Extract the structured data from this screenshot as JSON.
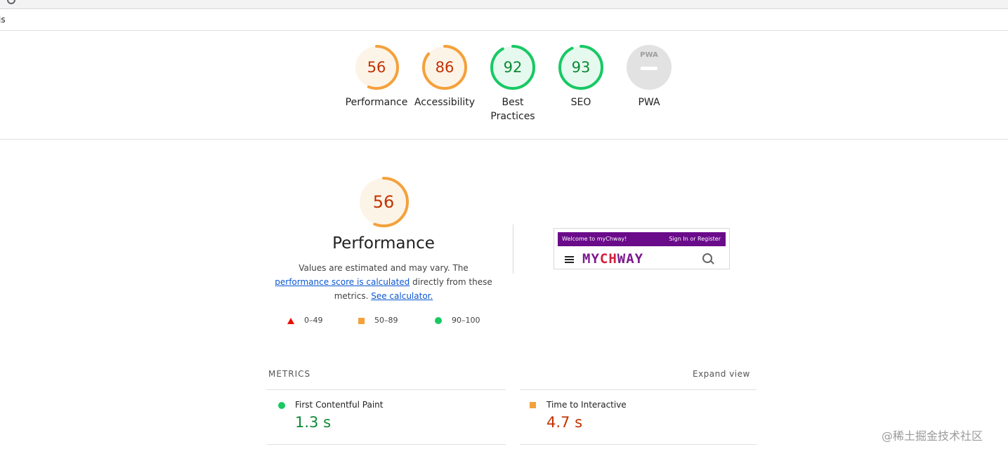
{
  "browser": {
    "tab_text": "js"
  },
  "categories": [
    {
      "label": "Performance",
      "score": "56",
      "fraction": 0.56,
      "status": "average"
    },
    {
      "label": "Accessibility",
      "score": "86",
      "fraction": 0.86,
      "status": "average"
    },
    {
      "label": "Best Practices",
      "line1": "Best",
      "line2": "Practices",
      "score": "92",
      "fraction": 0.92,
      "status": "pass"
    },
    {
      "label": "SEO",
      "score": "93",
      "fraction": 0.93,
      "status": "pass"
    },
    {
      "label": "PWA",
      "badge": "PWA",
      "status": "na"
    }
  ],
  "performance": {
    "score": "56",
    "fraction": 0.56,
    "title": "Performance",
    "desc_prefix": "Values are estimated and may vary. The ",
    "link1": "performance score is calculated",
    "desc_mid": " directly from these metrics.",
    "link2": "See calculator."
  },
  "legend": [
    {
      "range": "0–49",
      "shape": "triangle",
      "color": "#eb0f00"
    },
    {
      "range": "50–89",
      "shape": "square",
      "color": "#f4a13b"
    },
    {
      "range": "90–100",
      "shape": "circle",
      "color": "#18c964"
    }
  ],
  "screenshot": {
    "welcome": "Welcome to myChway!",
    "signin": "Sign In or Register",
    "logo_a": "MY",
    "logo_b": "CH",
    "logo_c": "WAY"
  },
  "metrics": {
    "header": "METRICS",
    "expand": "Expand view",
    "items": [
      {
        "name": "First Contentful Paint",
        "value": "1.3 s",
        "status": "pass"
      },
      {
        "name": "Time to Interactive",
        "value": "4.7 s",
        "status": "average"
      }
    ]
  },
  "watermark": "@稀土掘金技术社区",
  "colors": {
    "pass": "#0c8a35",
    "pass_ring": "#18c964",
    "pass_bg": "#e6f9ef",
    "average": "#c33300",
    "average_ring": "#f4a13b",
    "average_bg": "#fdf4e8",
    "na_bg": "#e2e2e2"
  }
}
